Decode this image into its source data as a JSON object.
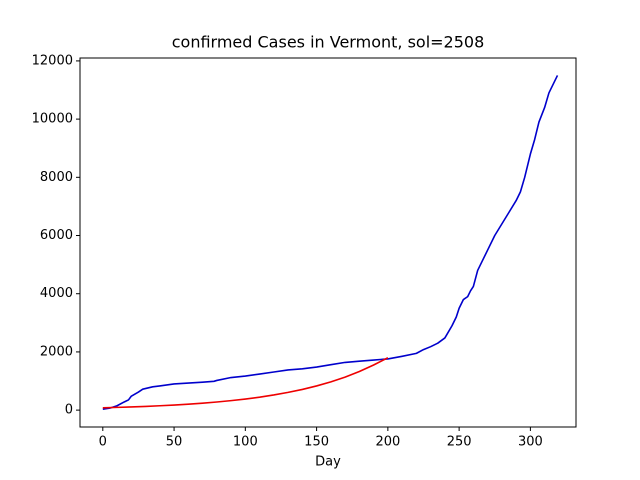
{
  "chart_data": {
    "type": "line",
    "title": "confirmed Cases in Vermont, sol=2508",
    "x_label": "Day",
    "xlim": [
      -16,
      332
    ],
    "xticks": [
      0,
      50,
      100,
      150,
      200,
      250,
      300
    ],
    "ylim": [
      -580,
      12100
    ],
    "yticks": [
      0,
      2000,
      4000,
      6000,
      8000,
      10000,
      12000
    ],
    "series": [
      {
        "color": "#0000cc",
        "x": [
          0,
          5,
          10,
          15,
          18,
          20,
          25,
          28,
          35,
          40,
          50,
          60,
          70,
          78,
          80,
          90,
          100,
          110,
          120,
          130,
          140,
          150,
          160,
          170,
          180,
          190,
          200,
          210,
          220,
          225,
          230,
          235,
          240,
          245,
          248,
          250,
          253,
          256,
          258,
          260,
          263,
          266,
          270,
          275,
          280,
          285,
          290,
          293,
          296,
          300,
          303,
          306,
          310,
          313,
          316,
          319
        ],
        "values": [
          30,
          70,
          150,
          280,
          350,
          480,
          620,
          720,
          800,
          830,
          900,
          930,
          960,
          990,
          1020,
          1120,
          1170,
          1240,
          1310,
          1380,
          1420,
          1480,
          1560,
          1640,
          1680,
          1720,
          1760,
          1850,
          1950,
          2080,
          2180,
          2300,
          2480,
          2900,
          3200,
          3500,
          3800,
          3900,
          4100,
          4250,
          4800,
          5100,
          5500,
          6000,
          6400,
          6800,
          7200,
          7500,
          8000,
          8800,
          9300,
          9900,
          10400,
          10900,
          11200,
          11500
        ]
      },
      {
        "color": "#ee0000",
        "x": [
          0,
          10,
          20,
          30,
          40,
          50,
          60,
          70,
          80,
          90,
          100,
          110,
          120,
          130,
          140,
          150,
          160,
          170,
          180,
          190,
          200
        ],
        "values": [
          80,
          94,
          109,
          128,
          150,
          175,
          204,
          239,
          279,
          326,
          381,
          445,
          521,
          609,
          711,
          831,
          971,
          1135,
          1326,
          1550,
          1800
        ]
      }
    ]
  }
}
